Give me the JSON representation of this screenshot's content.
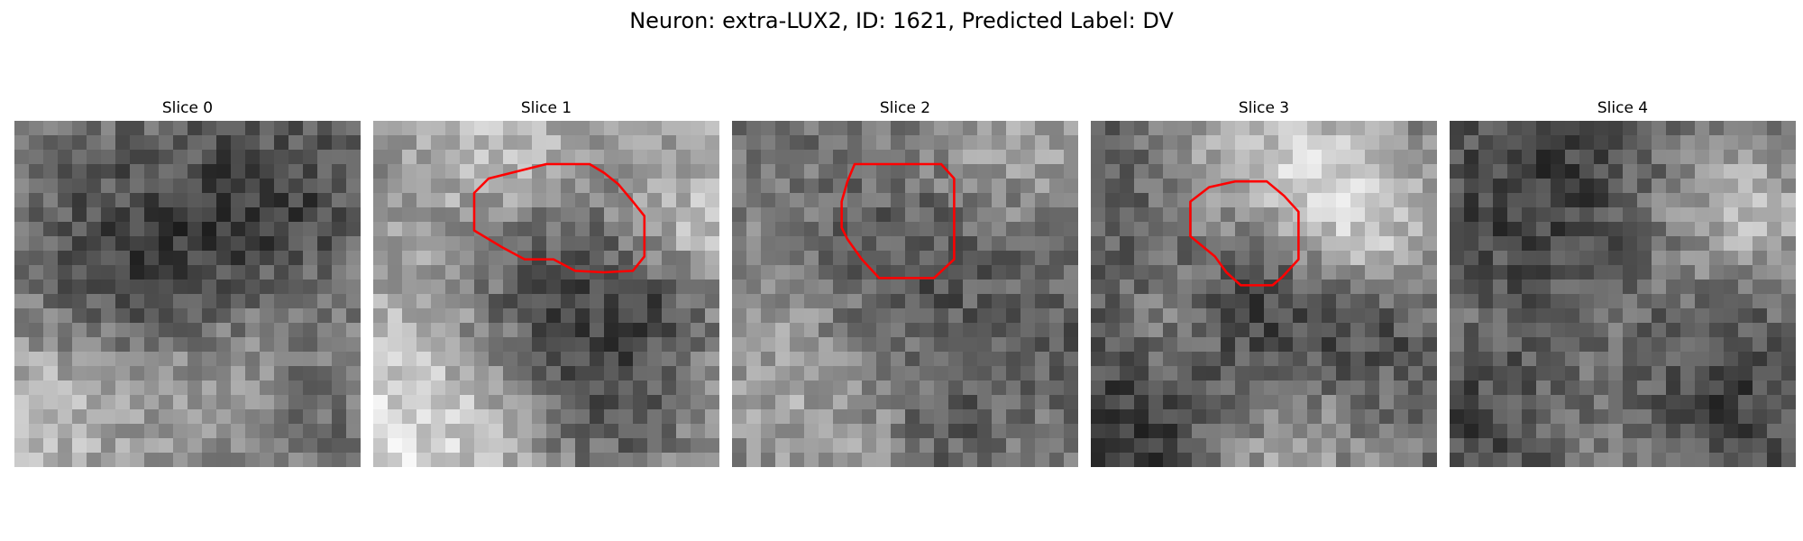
{
  "figure": {
    "title": "Neuron: extra-LUX2, ID: 1621, Predicted Label: DV"
  },
  "slices": [
    {
      "label": "Slice 0",
      "base": 125,
      "blobs": [
        [
          0.05,
          0.82,
          0.22,
          70
        ],
        [
          0.45,
          0.35,
          0.25,
          -55
        ],
        [
          0.8,
          0.22,
          0.18,
          -45
        ],
        [
          0.6,
          0.75,
          0.2,
          35
        ],
        [
          0.18,
          0.5,
          0.18,
          -30
        ],
        [
          0.85,
          0.85,
          0.12,
          -30
        ]
      ]
    },
    {
      "label": "Slice 1",
      "base": 160,
      "blobs": [
        [
          0.52,
          0.48,
          0.22,
          -85
        ],
        [
          0.7,
          0.85,
          0.18,
          -60
        ],
        [
          0.85,
          0.55,
          0.12,
          -45
        ],
        [
          0.1,
          0.9,
          0.25,
          60
        ],
        [
          0.3,
          0.1,
          0.2,
          50
        ],
        [
          0.1,
          0.15,
          0.15,
          -30
        ],
        [
          0.95,
          0.3,
          0.12,
          40
        ]
      ]
    },
    {
      "label": "Slice 2",
      "base": 120,
      "blobs": [
        [
          0.5,
          0.45,
          0.22,
          -40
        ],
        [
          0.1,
          0.65,
          0.2,
          40
        ],
        [
          0.35,
          0.95,
          0.2,
          35
        ],
        [
          0.8,
          0.05,
          0.18,
          45
        ],
        [
          0.95,
          0.6,
          0.15,
          -30
        ],
        [
          0.6,
          0.9,
          0.12,
          -35
        ]
      ]
    },
    {
      "label": "Slice 3",
      "base": 105,
      "blobs": [
        [
          0.5,
          0.1,
          0.22,
          80
        ],
        [
          0.8,
          0.28,
          0.18,
          90
        ],
        [
          0.25,
          0.6,
          0.12,
          40
        ],
        [
          0.55,
          0.97,
          0.2,
          60
        ],
        [
          0.5,
          0.52,
          0.18,
          -60
        ],
        [
          0.15,
          0.9,
          0.2,
          -55
        ],
        [
          0.82,
          0.6,
          0.13,
          -35
        ],
        [
          0.05,
          0.2,
          0.15,
          -20
        ]
      ]
    },
    {
      "label": "Slice 4",
      "base": 100,
      "blobs": [
        [
          0.3,
          0.3,
          0.25,
          -45
        ],
        [
          0.85,
          0.25,
          0.18,
          85
        ],
        [
          0.5,
          0.58,
          0.2,
          35
        ],
        [
          0.75,
          0.75,
          0.2,
          -45
        ],
        [
          0.1,
          0.9,
          0.15,
          -30
        ],
        [
          0.5,
          0.95,
          0.15,
          25
        ],
        [
          0.05,
          0.5,
          0.12,
          20
        ]
      ]
    }
  ],
  "outline": {
    "color": "#ff0000",
    "contours": [
      null,
      [
        [
          12,
          3
        ],
        [
          15,
          3
        ],
        [
          16,
          3.6
        ],
        [
          17,
          4.4
        ],
        [
          18,
          5.6
        ],
        [
          18.8,
          6.6
        ],
        [
          18.8,
          9.4
        ],
        [
          18,
          10.4
        ],
        [
          16,
          10.5
        ],
        [
          14,
          10.4
        ],
        [
          12.5,
          9.6
        ],
        [
          10.5,
          9.6
        ],
        [
          9,
          8.8
        ],
        [
          7,
          7.6
        ],
        [
          7,
          5
        ],
        [
          8,
          4
        ]
      ],
      [
        [
          8.5,
          3
        ],
        [
          14.5,
          3
        ],
        [
          15.4,
          4
        ],
        [
          15.4,
          9.6
        ],
        [
          14,
          10.9
        ],
        [
          10.2,
          10.9
        ],
        [
          9,
          9.6
        ],
        [
          8,
          8.2
        ],
        [
          7.6,
          7.4
        ],
        [
          7.6,
          5.6
        ],
        [
          8,
          4.2
        ]
      ],
      [
        [
          10,
          4.2
        ],
        [
          12.2,
          4.2
        ],
        [
          13.4,
          5.2
        ],
        [
          14.4,
          6.3
        ],
        [
          14.4,
          9.6
        ],
        [
          13.3,
          10.8
        ],
        [
          12.6,
          11.4
        ],
        [
          10.4,
          11.4
        ],
        [
          9.4,
          10.5
        ],
        [
          8.6,
          9.4
        ],
        [
          6.9,
          8
        ],
        [
          6.9,
          5.6
        ],
        [
          8.2,
          4.6
        ]
      ],
      null
    ]
  }
}
